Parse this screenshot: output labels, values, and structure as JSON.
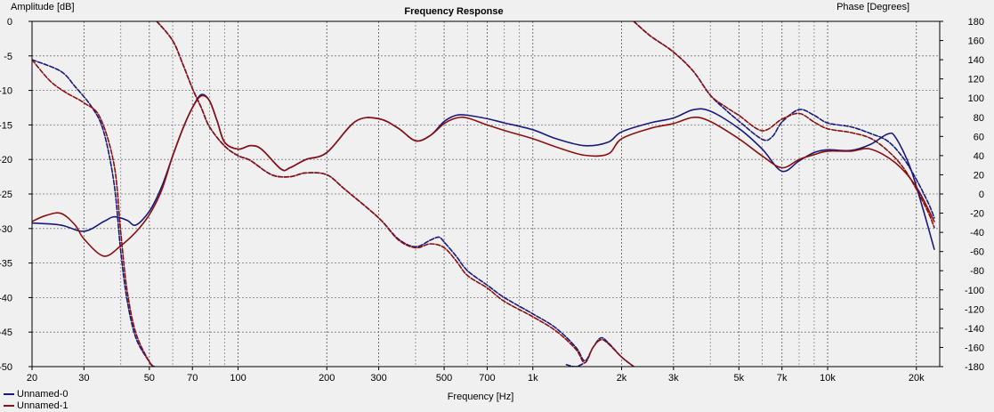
{
  "chart_data": {
    "type": "line",
    "title": "Frequency Response",
    "xlabel": "Frequency [Hz]",
    "ylabel_left": "Amplitude [dB]",
    "ylabel_right": "Phase [Degrees]",
    "x_scale": "log",
    "xlim": [
      20,
      24000
    ],
    "ylim_left": [
      -50,
      0
    ],
    "ylim_right": [
      -180,
      180
    ],
    "grid": true,
    "legend_position": "bottom-left",
    "x_ticks": [
      {
        "value": 20,
        "label": "20"
      },
      {
        "value": 30,
        "label": "30"
      },
      {
        "value": 50,
        "label": "50"
      },
      {
        "value": 70,
        "label": "70"
      },
      {
        "value": 100,
        "label": "100"
      },
      {
        "value": 200,
        "label": "200"
      },
      {
        "value": 300,
        "label": "300"
      },
      {
        "value": 500,
        "label": "500"
      },
      {
        "value": 700,
        "label": "700"
      },
      {
        "value": 1000,
        "label": "1k"
      },
      {
        "value": 2000,
        "label": "2k"
      },
      {
        "value": 3000,
        "label": "3k"
      },
      {
        "value": 5000,
        "label": "5k"
      },
      {
        "value": 7000,
        "label": "7k"
      },
      {
        "value": 10000,
        "label": "10k"
      },
      {
        "value": 20000,
        "label": "20k"
      }
    ],
    "y_left_ticks": [
      0,
      -5,
      -10,
      -15,
      -20,
      -25,
      -30,
      -35,
      -40,
      -45,
      -50
    ],
    "y_right_ticks": [
      180,
      160,
      140,
      120,
      100,
      80,
      60,
      40,
      20,
      0,
      -20,
      -40,
      -60,
      -80,
      -100,
      -120,
      -140,
      -160,
      -180
    ],
    "series": [
      {
        "name": "Unnamed-0",
        "color": "#1a1a7a",
        "axis": "left",
        "style": "solid",
        "points": [
          [
            20,
            -29.2
          ],
          [
            25,
            -29.5
          ],
          [
            30,
            -30.4
          ],
          [
            35,
            -29
          ],
          [
            38,
            -28.3
          ],
          [
            42,
            -28.8
          ],
          [
            45,
            -29.5
          ],
          [
            50,
            -27.5
          ],
          [
            55,
            -24
          ],
          [
            60,
            -19.5
          ],
          [
            65,
            -15.5
          ],
          [
            70,
            -12.5
          ],
          [
            75,
            -10.6
          ],
          [
            80,
            -11.5
          ],
          [
            85,
            -14.5
          ],
          [
            90,
            -17.5
          ],
          [
            100,
            -18.5
          ],
          [
            110,
            -18
          ],
          [
            120,
            -18.5
          ],
          [
            140,
            -21.4
          ],
          [
            150,
            -21.2
          ],
          [
            170,
            -20
          ],
          [
            200,
            -19
          ],
          [
            250,
            -14.5
          ],
          [
            300,
            -14.1
          ],
          [
            350,
            -15.5
          ],
          [
            400,
            -17.3
          ],
          [
            450,
            -16.5
          ],
          [
            500,
            -14.5
          ],
          [
            550,
            -13.6
          ],
          [
            600,
            -13.6
          ],
          [
            700,
            -14.1
          ],
          [
            800,
            -14.7
          ],
          [
            1000,
            -15.7
          ],
          [
            1200,
            -17
          ],
          [
            1500,
            -18
          ],
          [
            1800,
            -17.5
          ],
          [
            2000,
            -16
          ],
          [
            2500,
            -14.7
          ],
          [
            3000,
            -14
          ],
          [
            3500,
            -12.8
          ],
          [
            4000,
            -13
          ],
          [
            5000,
            -15.5
          ],
          [
            6000,
            -18.5
          ],
          [
            7000,
            -21.7
          ],
          [
            8000,
            -20.2
          ],
          [
            9000,
            -19
          ],
          [
            10000,
            -18.6
          ],
          [
            12000,
            -18.7
          ],
          [
            14000,
            -17.8
          ],
          [
            16000,
            -16.3
          ],
          [
            17000,
            -16.8
          ],
          [
            19000,
            -21
          ],
          [
            21000,
            -27
          ],
          [
            23000,
            -33
          ]
        ]
      },
      {
        "name": "Unnamed-1",
        "color": "#8b1010",
        "axis": "left",
        "style": "solid",
        "points": [
          [
            20,
            -29
          ],
          [
            22,
            -28.2
          ],
          [
            25,
            -27.8
          ],
          [
            28,
            -29.5
          ],
          [
            30,
            -31.5
          ],
          [
            35,
            -34
          ],
          [
            40,
            -32.5
          ],
          [
            45,
            -30.5
          ],
          [
            50,
            -28
          ],
          [
            55,
            -24.5
          ],
          [
            60,
            -19.5
          ],
          [
            65,
            -15.5
          ],
          [
            70,
            -12.5
          ],
          [
            75,
            -10.8
          ],
          [
            80,
            -11.5
          ],
          [
            85,
            -14.5
          ],
          [
            90,
            -17.5
          ],
          [
            100,
            -18.5
          ],
          [
            110,
            -18
          ],
          [
            120,
            -18.5
          ],
          [
            140,
            -21.4
          ],
          [
            150,
            -21.2
          ],
          [
            170,
            -20
          ],
          [
            200,
            -19
          ],
          [
            250,
            -14.5
          ],
          [
            300,
            -14.1
          ],
          [
            350,
            -15.5
          ],
          [
            400,
            -17.3
          ],
          [
            450,
            -16.5
          ],
          [
            500,
            -14.8
          ],
          [
            550,
            -14
          ],
          [
            600,
            -14
          ],
          [
            700,
            -15
          ],
          [
            800,
            -15.8
          ],
          [
            1000,
            -17
          ],
          [
            1200,
            -18.2
          ],
          [
            1500,
            -19.4
          ],
          [
            1800,
            -19.2
          ],
          [
            2000,
            -17
          ],
          [
            2500,
            -15.5
          ],
          [
            3000,
            -14.8
          ],
          [
            3500,
            -13.9
          ],
          [
            4000,
            -14.5
          ],
          [
            5000,
            -17
          ],
          [
            6000,
            -19.5
          ],
          [
            7000,
            -21.2
          ],
          [
            8000,
            -20
          ],
          [
            9000,
            -19.3
          ],
          [
            10000,
            -18.8
          ],
          [
            12000,
            -18.8
          ],
          [
            14000,
            -18.5
          ],
          [
            17000,
            -20.5
          ],
          [
            20000,
            -24
          ],
          [
            23000,
            -29
          ]
        ]
      },
      {
        "name": "Unnamed-0",
        "color": "#1a1a7a",
        "axis": "right",
        "style": "dashed",
        "segments": [
          [
            [
              20,
              140
            ],
            [
              25,
              128
            ],
            [
              28,
              112
            ],
            [
              32,
              90
            ],
            [
              35,
              65
            ],
            [
              38,
              10
            ],
            [
              40,
              -60
            ],
            [
              42,
              -110
            ],
            [
              45,
              -150
            ],
            [
              50,
              -175
            ],
            [
              52,
              -180
            ]
          ],
          [
            [
              53,
              180
            ],
            [
              60,
              160
            ],
            [
              65,
              135
            ],
            [
              70,
              110
            ],
            [
              75,
              90
            ],
            [
              80,
              70
            ],
            [
              90,
              50
            ],
            [
              100,
              40
            ],
            [
              110,
              35
            ],
            [
              130,
              20
            ],
            [
              150,
              18
            ],
            [
              170,
              22
            ],
            [
              200,
              20
            ],
            [
              230,
              5
            ],
            [
              300,
              -25
            ],
            [
              350,
              -47
            ],
            [
              400,
              -55
            ],
            [
              450,
              -48
            ],
            [
              480,
              -45
            ],
            [
              500,
              -50
            ],
            [
              550,
              -65
            ],
            [
              600,
              -80
            ],
            [
              700,
              -95
            ],
            [
              800,
              -108
            ],
            [
              1000,
              -125
            ],
            [
              1200,
              -140
            ],
            [
              1400,
              -160
            ],
            [
              1500,
              -174
            ],
            [
              1600,
              -160
            ],
            [
              1700,
              -150
            ],
            [
              1800,
              -155
            ],
            [
              2000,
              -170
            ],
            [
              2200,
              -180
            ]
          ],
          [
            [
              1300,
              -178
            ],
            [
              1400,
              -180
            ],
            [
              1500,
              -176
            ]
          ],
          [
            [
              2200,
              180
            ],
            [
              2500,
              165
            ],
            [
              3000,
              148
            ],
            [
              3500,
              128
            ],
            [
              4000,
              103
            ],
            [
              4500,
              88
            ],
            [
              5000,
              76
            ],
            [
              6000,
              57
            ],
            [
              6500,
              60
            ],
            [
              7000,
              75
            ],
            [
              8000,
              88
            ],
            [
              9000,
              82
            ],
            [
              10000,
              74
            ],
            [
              12000,
              70
            ],
            [
              14000,
              63
            ],
            [
              16000,
              55
            ],
            [
              18000,
              38
            ],
            [
              20000,
              15
            ],
            [
              22000,
              -10
            ],
            [
              23000,
              -25
            ]
          ]
        ]
      },
      {
        "name": "Unnamed-1",
        "color": "#8b1010",
        "axis": "right",
        "style": "dashed",
        "segments": [
          [
            [
              20,
              140
            ],
            [
              23,
              118
            ],
            [
              26,
              106
            ],
            [
              30,
              95
            ],
            [
              34,
              80
            ],
            [
              38,
              30
            ],
            [
              40,
              -40
            ],
            [
              42,
              -100
            ],
            [
              45,
              -145
            ],
            [
              50,
              -175
            ],
            [
              52,
              -180
            ]
          ],
          [
            [
              53,
              180
            ],
            [
              60,
              160
            ],
            [
              65,
              135
            ],
            [
              70,
              110
            ],
            [
              75,
              90
            ],
            [
              80,
              70
            ],
            [
              90,
              50
            ],
            [
              100,
              40
            ],
            [
              110,
              35
            ],
            [
              130,
              20
            ],
            [
              150,
              18
            ],
            [
              170,
              22
            ],
            [
              200,
              20
            ],
            [
              230,
              5
            ],
            [
              300,
              -25
            ],
            [
              350,
              -48
            ],
            [
              400,
              -56
            ],
            [
              450,
              -52
            ],
            [
              500,
              -56
            ],
            [
              550,
              -70
            ],
            [
              600,
              -85
            ],
            [
              700,
              -98
            ],
            [
              800,
              -112
            ],
            [
              1000,
              -128
            ],
            [
              1200,
              -143
            ],
            [
              1400,
              -162
            ],
            [
              1500,
              -176
            ],
            [
              1600,
              -160
            ],
            [
              1700,
              -152
            ],
            [
              1800,
              -156
            ],
            [
              2000,
              -170
            ],
            [
              2200,
              -180
            ]
          ],
          [
            [
              2200,
              180
            ],
            [
              2500,
              165
            ],
            [
              3000,
              148
            ],
            [
              3500,
              128
            ],
            [
              4000,
              103
            ],
            [
              4500,
              91
            ],
            [
              5000,
              82
            ],
            [
              6000,
              66
            ],
            [
              7000,
              78
            ],
            [
              8000,
              84
            ],
            [
              9000,
              75
            ],
            [
              10000,
              68
            ],
            [
              12000,
              64
            ],
            [
              14000,
              58
            ],
            [
              16000,
              45
            ],
            [
              18000,
              28
            ],
            [
              20000,
              5
            ],
            [
              22000,
              -20
            ],
            [
              23000,
              -35
            ]
          ]
        ]
      }
    ]
  },
  "legend": {
    "items": [
      {
        "label": "Unnamed-0",
        "color": "#1a1a7a"
      },
      {
        "label": "Unnamed-1",
        "color": "#8b1010"
      }
    ]
  }
}
